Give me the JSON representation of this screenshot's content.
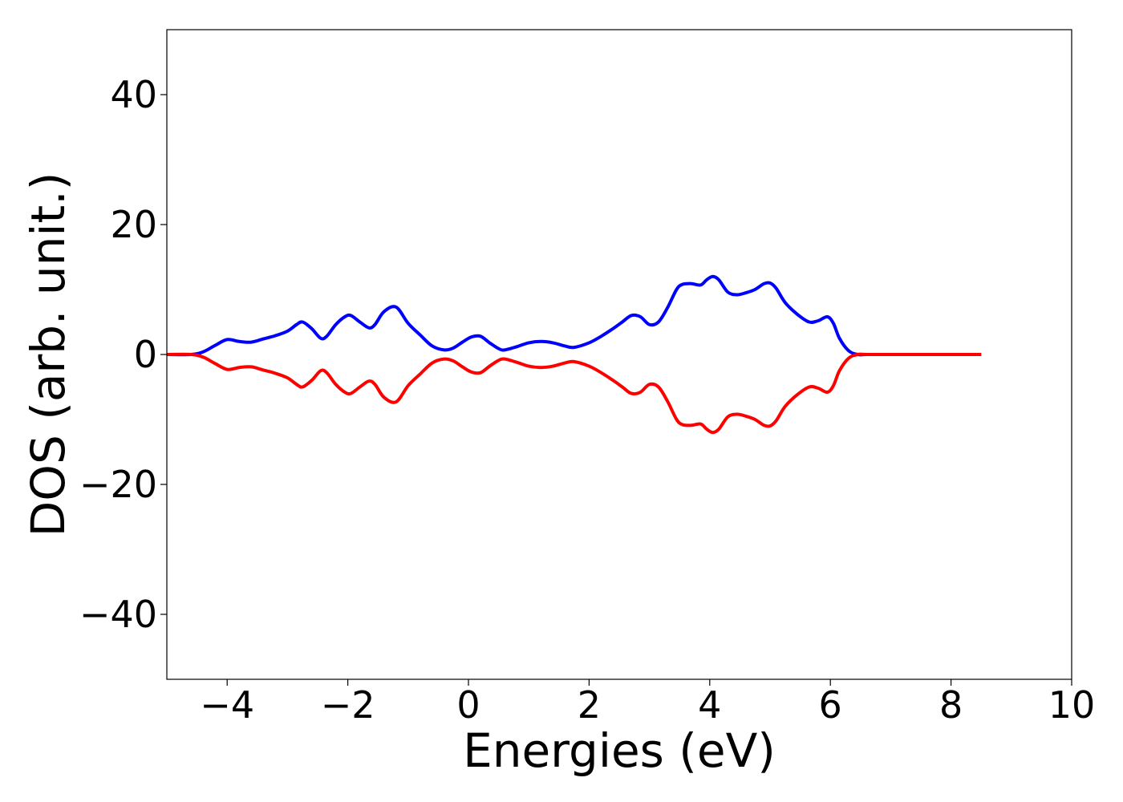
{
  "chart_data": {
    "type": "line",
    "title": "",
    "xlabel": "Energies (eV)",
    "ylabel": "DOS (arb. unit.)",
    "xlim": [
      -5,
      10
    ],
    "ylim": [
      -50,
      50
    ],
    "xticks": [
      -4,
      -2,
      0,
      2,
      4,
      6,
      8,
      10
    ],
    "xtick_labels": [
      "−4",
      "−2",
      "0",
      "2",
      "4",
      "6",
      "8",
      "10"
    ],
    "yticks": [
      -40,
      -20,
      0,
      20,
      40
    ],
    "ytick_labels": [
      "−40",
      "−20",
      "0",
      "20",
      "40"
    ],
    "grid": false,
    "legend": false,
    "series": [
      {
        "color": "#0000ff",
        "x": [
          -5.0,
          -4.6,
          -4.4,
          -4.2,
          -4.0,
          -3.8,
          -3.6,
          -3.4,
          -3.2,
          -3.0,
          -2.85,
          -2.75,
          -2.6,
          -2.45,
          -2.35,
          -2.2,
          -2.05,
          -1.95,
          -1.8,
          -1.65,
          -1.55,
          -1.4,
          -1.2,
          -1.0,
          -0.8,
          -0.6,
          -0.4,
          -0.25,
          -0.1,
          0.05,
          0.2,
          0.35,
          0.5,
          0.6,
          0.8,
          1.0,
          1.2,
          1.4,
          1.6,
          1.75,
          2.0,
          2.2,
          2.4,
          2.55,
          2.7,
          2.85,
          3.0,
          3.15,
          3.3,
          3.45,
          3.55,
          3.7,
          3.85,
          3.95,
          4.05,
          4.15,
          4.3,
          4.45,
          4.6,
          4.75,
          4.9,
          5.0,
          5.1,
          5.25,
          5.45,
          5.65,
          5.8,
          5.95,
          6.05,
          6.15,
          6.3,
          6.45,
          6.6,
          7.0,
          7.5,
          8.0,
          8.5
        ],
        "y": [
          0.0,
          0.0,
          0.4,
          1.4,
          2.3,
          2.0,
          1.9,
          2.4,
          2.9,
          3.6,
          4.6,
          5.0,
          4.0,
          2.5,
          2.8,
          4.6,
          5.8,
          6.0,
          5.0,
          4.1,
          4.6,
          6.6,
          7.3,
          4.8,
          3.0,
          1.3,
          0.7,
          1.0,
          1.9,
          2.7,
          2.8,
          1.8,
          0.9,
          0.7,
          1.2,
          1.8,
          2.0,
          1.8,
          1.3,
          1.1,
          1.8,
          2.8,
          4.0,
          5.0,
          6.0,
          5.8,
          4.6,
          5.0,
          7.2,
          10.0,
          10.8,
          10.9,
          10.7,
          11.5,
          12.0,
          11.5,
          9.6,
          9.2,
          9.5,
          10.0,
          10.9,
          11.0,
          10.2,
          8.0,
          6.2,
          5.0,
          5.2,
          5.8,
          4.8,
          2.5,
          0.6,
          0.0,
          0.0,
          0.0,
          0.0,
          0.0,
          0.0
        ]
      },
      {
        "color": "#ff0000",
        "x": [
          -5.0,
          -4.6,
          -4.4,
          -4.2,
          -4.0,
          -3.8,
          -3.6,
          -3.4,
          -3.2,
          -3.0,
          -2.85,
          -2.75,
          -2.6,
          -2.45,
          -2.35,
          -2.2,
          -2.05,
          -1.95,
          -1.8,
          -1.65,
          -1.55,
          -1.4,
          -1.2,
          -1.0,
          -0.8,
          -0.6,
          -0.4,
          -0.25,
          -0.1,
          0.05,
          0.2,
          0.35,
          0.5,
          0.6,
          0.8,
          1.0,
          1.2,
          1.4,
          1.6,
          1.75,
          2.0,
          2.2,
          2.4,
          2.55,
          2.7,
          2.85,
          3.0,
          3.15,
          3.3,
          3.45,
          3.55,
          3.7,
          3.85,
          3.95,
          4.05,
          4.15,
          4.3,
          4.45,
          4.6,
          4.75,
          4.9,
          5.0,
          5.1,
          5.25,
          5.45,
          5.65,
          5.8,
          5.95,
          6.05,
          6.15,
          6.3,
          6.45,
          6.6,
          7.0,
          7.5,
          8.0,
          8.5
        ],
        "y": [
          0.0,
          0.0,
          -0.4,
          -1.4,
          -2.3,
          -2.0,
          -1.9,
          -2.4,
          -2.9,
          -3.6,
          -4.6,
          -5.0,
          -4.0,
          -2.5,
          -2.8,
          -4.6,
          -5.8,
          -6.0,
          -5.0,
          -4.1,
          -4.6,
          -6.6,
          -7.3,
          -4.8,
          -3.0,
          -1.3,
          -0.7,
          -1.0,
          -1.9,
          -2.7,
          -2.8,
          -1.8,
          -0.9,
          -0.7,
          -1.2,
          -1.8,
          -2.0,
          -1.8,
          -1.3,
          -1.1,
          -1.8,
          -2.8,
          -4.0,
          -5.0,
          -6.0,
          -5.8,
          -4.6,
          -5.0,
          -7.2,
          -10.0,
          -10.8,
          -10.9,
          -10.7,
          -11.5,
          -12.0,
          -11.5,
          -9.6,
          -9.2,
          -9.5,
          -10.0,
          -10.9,
          -11.0,
          -10.2,
          -8.0,
          -6.2,
          -5.0,
          -5.2,
          -5.8,
          -4.8,
          -2.5,
          -0.6,
          0.0,
          0.0,
          0.0,
          0.0,
          0.0,
          0.0
        ]
      }
    ]
  }
}
